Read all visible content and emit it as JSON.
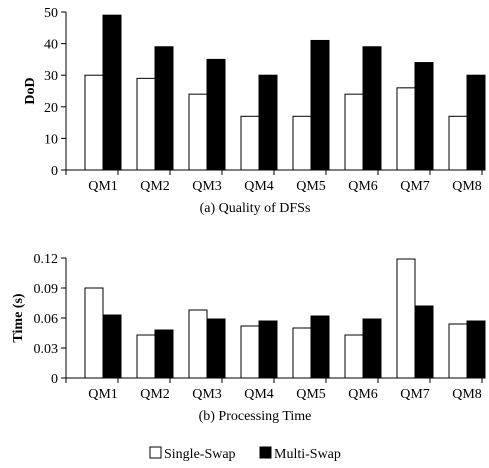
{
  "chart_data": [
    {
      "type": "bar",
      "categories": [
        "QM1",
        "QM2",
        "QM3",
        "QM4",
        "QM5",
        "QM6",
        "QM7",
        "QM8"
      ],
      "series": [
        {
          "name": "Single-Swap",
          "values": [
            30,
            29,
            24,
            17,
            17,
            24,
            26,
            17
          ]
        },
        {
          "name": "Multi-Swap",
          "values": [
            49,
            39,
            35,
            30,
            41,
            39,
            34,
            30
          ]
        }
      ],
      "title": "(a) Quality of DFSs",
      "xlabel": "",
      "ylabel": "DoD",
      "ylim": [
        0,
        50
      ],
      "yticks": [
        "0",
        "10",
        "20",
        "30",
        "40",
        "50"
      ],
      "grid": false
    },
    {
      "type": "bar",
      "categories": [
        "QM1",
        "QM2",
        "QM3",
        "QM4",
        "QM5",
        "QM6",
        "QM7",
        "QM8"
      ],
      "series": [
        {
          "name": "Single-Swap",
          "values": [
            0.09,
            0.043,
            0.068,
            0.052,
            0.05,
            0.043,
            0.119,
            0.054
          ]
        },
        {
          "name": "Multi-Swap",
          "values": [
            0.063,
            0.048,
            0.059,
            0.057,
            0.062,
            0.059,
            0.072,
            0.057
          ]
        }
      ],
      "title": "(b) Processing Time",
      "xlabel": "",
      "ylabel": "Time (s)",
      "ylim": [
        0,
        0.12
      ],
      "yticks": [
        "0",
        "0.03",
        "0.06",
        "0.09",
        "0.12"
      ],
      "grid": false
    }
  ],
  "legend": {
    "placement": "bottom-center",
    "items": [
      {
        "label": "Single-Swap",
        "color": "#ffffff"
      },
      {
        "label": "Multi-Swap",
        "color": "#000000"
      }
    ]
  },
  "colors": {
    "single": "#ffffff",
    "multi": "#000000",
    "axis": "#000000"
  }
}
